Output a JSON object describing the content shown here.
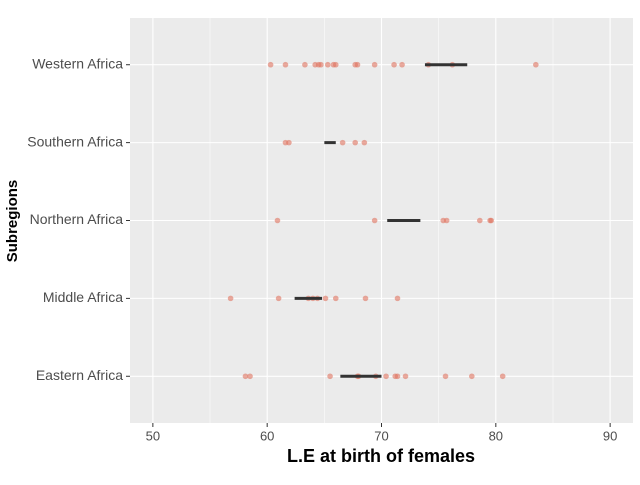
{
  "chart_data": {
    "type": "strip",
    "x_label": "L.E at birth of females",
    "y_label": "Subregions",
    "categories": [
      "Western Africa",
      "Southern Africa",
      "Northern Africa",
      "Middle Africa",
      "Eastern Africa"
    ],
    "points": [
      [
        60.3,
        61.6,
        63.3,
        64.2,
        64.5,
        64.7,
        65.3,
        65.8,
        66.0,
        67.7,
        67.9,
        69.4,
        71.1,
        71.8,
        74.1,
        76.2,
        83.5
      ],
      [
        61.6,
        61.9,
        66.6,
        67.7,
        68.5
      ],
      [
        60.9,
        69.4,
        75.4,
        75.7,
        78.6,
        79.5,
        79.6
      ],
      [
        56.8,
        61.0,
        63.6,
        64.0,
        64.4,
        65.1,
        66.0,
        68.6,
        71.4
      ],
      [
        58.1,
        58.5,
        65.5,
        67.9,
        68.0,
        69.5,
        70.4,
        71.2,
        71.4,
        72.1,
        75.6,
        77.9,
        80.6
      ]
    ],
    "bars": [
      [
        73.8,
        77.5
      ],
      [
        65.0,
        66.0
      ],
      [
        70.5,
        73.4
      ],
      [
        62.4,
        64.8
      ],
      [
        66.4,
        70.0
      ]
    ],
    "point_color": "#e0735f",
    "bar_color": "#333333",
    "xlim": [
      48,
      92
    ],
    "xticks": [
      50,
      60,
      70,
      80,
      90
    ],
    "minor_xticks": [
      55,
      65,
      75,
      85
    ],
    "grid": true
  }
}
